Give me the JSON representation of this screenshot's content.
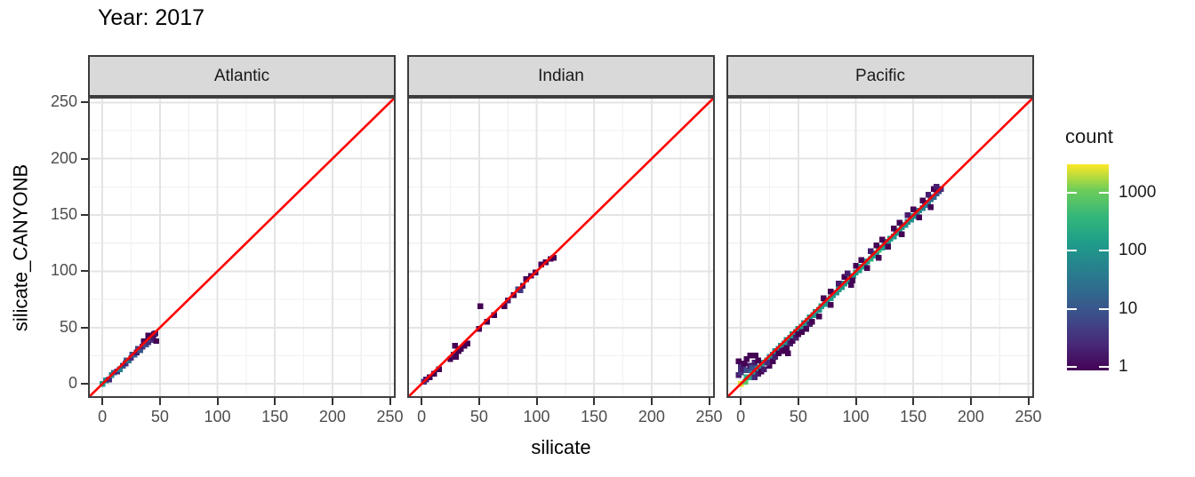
{
  "title": "Year: 2017",
  "axes": {
    "x_label": "silicate",
    "y_label": "silicate_CANYONB"
  },
  "legend": {
    "title": "count",
    "tick_values": [
      1000,
      100,
      10,
      1
    ],
    "scale": "log10",
    "palette": "viridis"
  },
  "colors": {
    "reference_line": "#FF0000",
    "strip_bg": "#D9D9D9",
    "strip_border": "#3b3b3b",
    "panel_border": "#404040",
    "grid_major": "#E4E4E4",
    "grid_minor": "#F1F1F1",
    "tick_label": "#4D4D4D",
    "text": "#1a1a1a",
    "viridis_low": "#440154",
    "viridis_high": "#FDE725"
  },
  "chart_data": {
    "type": "heatmap",
    "subtype": "bin2d",
    "title": "Year: 2017",
    "xlabel": "silicate",
    "ylabel": "silicate_CANYONB",
    "x_ticks": [
      0,
      50,
      100,
      150,
      200,
      250
    ],
    "y_ticks": [
      0,
      50,
      100,
      150,
      200,
      250
    ],
    "xlim": [
      -12.5,
      255
    ],
    "ylim": [
      -12.5,
      255
    ],
    "bin_size": 5,
    "bin_format": "[x, y, count]",
    "grid": "major+minor",
    "legend_position": "right",
    "reference_line": {
      "slope": 1,
      "intercept": 0,
      "color": "#FF0000"
    },
    "color_scale": {
      "palette": "viridis",
      "trans": "log10",
      "domain": [
        1,
        3000
      ],
      "legend_title": "count",
      "legend_ticks": [
        1,
        10,
        100,
        1000
      ]
    },
    "facets": [
      {
        "label": "Atlantic",
        "bins": [
          [
            0,
            0,
            120
          ],
          [
            3,
            3,
            80
          ],
          [
            6,
            4,
            3
          ],
          [
            8,
            8,
            60
          ],
          [
            10,
            10,
            25
          ],
          [
            13,
            11,
            3
          ],
          [
            15,
            13,
            50
          ],
          [
            18,
            16,
            10
          ],
          [
            20,
            18,
            3
          ],
          [
            21,
            21,
            12
          ],
          [
            23,
            21,
            30
          ],
          [
            25,
            23,
            3
          ],
          [
            26,
            26,
            8
          ],
          [
            28,
            26,
            15
          ],
          [
            30,
            28,
            2
          ],
          [
            31,
            31,
            6
          ],
          [
            33,
            30,
            12
          ],
          [
            35,
            33,
            3
          ],
          [
            36,
            38,
            1
          ],
          [
            38,
            35,
            8
          ],
          [
            40,
            37,
            3
          ],
          [
            40,
            43,
            1
          ],
          [
            42,
            39,
            4
          ],
          [
            44,
            41,
            2
          ],
          [
            45,
            44,
            1
          ],
          [
            47,
            38,
            1
          ],
          [
            46,
            45,
            2
          ]
        ]
      },
      {
        "label": "Indian",
        "bins": [
          [
            2,
            2,
            4
          ],
          [
            4,
            4,
            2
          ],
          [
            7,
            6,
            1
          ],
          [
            11,
            9,
            1
          ],
          [
            15,
            13,
            1
          ],
          [
            25,
            22,
            1
          ],
          [
            28,
            26,
            2
          ],
          [
            30,
            24,
            1
          ],
          [
            32,
            29,
            1
          ],
          [
            29,
            34,
            1
          ],
          [
            34,
            31,
            1
          ],
          [
            37,
            34,
            1
          ],
          [
            40,
            36,
            1
          ],
          [
            50,
            49,
            1
          ],
          [
            51,
            69,
            1
          ],
          [
            57,
            55,
            1
          ],
          [
            63,
            61,
            1
          ],
          [
            72,
            69,
            1
          ],
          [
            75,
            74,
            2
          ],
          [
            80,
            79,
            1
          ],
          [
            84,
            84,
            6
          ],
          [
            86,
            83,
            4
          ],
          [
            88,
            87,
            2
          ],
          [
            91,
            93,
            1
          ],
          [
            95,
            96,
            1
          ],
          [
            99,
            99,
            1
          ],
          [
            104,
            106,
            1
          ],
          [
            108,
            108,
            1
          ],
          [
            112,
            111,
            1
          ],
          [
            115,
            112,
            1
          ]
        ]
      },
      {
        "label": "Pacific",
        "bins": [
          [
            0,
            0,
            2500
          ],
          [
            4,
            2,
            800
          ],
          [
            5,
            6,
            300
          ],
          [
            8,
            6,
            200
          ],
          [
            10,
            9,
            150
          ],
          [
            13,
            11,
            200
          ],
          [
            15,
            14,
            150
          ],
          [
            18,
            16,
            100
          ],
          [
            20,
            19,
            150
          ],
          [
            23,
            21,
            100
          ],
          [
            25,
            24,
            80
          ],
          [
            28,
            26,
            120
          ],
          [
            30,
            29,
            100
          ],
          [
            33,
            31,
            80
          ],
          [
            35,
            34,
            120
          ],
          [
            38,
            36,
            100
          ],
          [
            40,
            39,
            80
          ],
          [
            43,
            41,
            120
          ],
          [
            45,
            44,
            150
          ],
          [
            48,
            46,
            100
          ],
          [
            50,
            49,
            120
          ],
          [
            53,
            51,
            150
          ],
          [
            55,
            54,
            100
          ],
          [
            58,
            56,
            120
          ],
          [
            60,
            59,
            150
          ],
          [
            63,
            61,
            100
          ],
          [
            65,
            64,
            120
          ],
          [
            68,
            66,
            100
          ],
          [
            70,
            69,
            150
          ],
          [
            73,
            71,
            120
          ],
          [
            75,
            74,
            100
          ],
          [
            78,
            76,
            150
          ],
          [
            80,
            79,
            120
          ],
          [
            83,
            81,
            100
          ],
          [
            85,
            84,
            150
          ],
          [
            88,
            86,
            120
          ],
          [
            90,
            89,
            100
          ],
          [
            93,
            91,
            150
          ],
          [
            95,
            94,
            200
          ],
          [
            98,
            96,
            150
          ],
          [
            100,
            99,
            120
          ],
          [
            103,
            101,
            150
          ],
          [
            105,
            104,
            200
          ],
          [
            108,
            106,
            150
          ],
          [
            110,
            109,
            120
          ],
          [
            113,
            111,
            300
          ],
          [
            115,
            114,
            150
          ],
          [
            118,
            116,
            120
          ],
          [
            120,
            119,
            500
          ],
          [
            123,
            121,
            150
          ],
          [
            125,
            124,
            120
          ],
          [
            128,
            126,
            100
          ],
          [
            130,
            129,
            150
          ],
          [
            133,
            131,
            120
          ],
          [
            135,
            134,
            100
          ],
          [
            138,
            136,
            150
          ],
          [
            140,
            139,
            120
          ],
          [
            143,
            141,
            100
          ],
          [
            145,
            144,
            80
          ],
          [
            148,
            146,
            100
          ],
          [
            150,
            149,
            80
          ],
          [
            153,
            151,
            60
          ],
          [
            155,
            154,
            80
          ],
          [
            158,
            156,
            60
          ],
          [
            160,
            159,
            50
          ],
          [
            163,
            161,
            40
          ],
          [
            165,
            164,
            30
          ],
          [
            168,
            166,
            20
          ],
          [
            170,
            169,
            12
          ],
          [
            172,
            171,
            8
          ],
          [
            174,
            173,
            3
          ],
          [
            -2,
            8,
            2
          ],
          [
            0,
            10,
            4
          ],
          [
            0,
            15,
            3
          ],
          [
            2,
            13,
            2
          ],
          [
            -2,
            20,
            1
          ],
          [
            3,
            18,
            1
          ],
          [
            5,
            12,
            8
          ],
          [
            5,
            22,
            1
          ],
          [
            8,
            16,
            2
          ],
          [
            8,
            25,
            1
          ],
          [
            10,
            14,
            10
          ],
          [
            12,
            19,
            2
          ],
          [
            15,
            21,
            1
          ],
          [
            13,
            25,
            1
          ],
          [
            12,
            6,
            3
          ],
          [
            15,
            9,
            2
          ],
          [
            18,
            11,
            1
          ],
          [
            20,
            13,
            2
          ],
          [
            25,
            16,
            1
          ],
          [
            23,
            19,
            3
          ],
          [
            28,
            20,
            1
          ],
          [
            30,
            24,
            2
          ],
          [
            33,
            27,
            1
          ],
          [
            36,
            29,
            1
          ],
          [
            38,
            30,
            1
          ],
          [
            40,
            32,
            1
          ],
          [
            41,
            27,
            1
          ],
          [
            43,
            36,
            2
          ],
          [
            45,
            38,
            1
          ],
          [
            48,
            41,
            2
          ],
          [
            50,
            44,
            1
          ],
          [
            53,
            46,
            1
          ],
          [
            57,
            49,
            1
          ],
          [
            60,
            53,
            2
          ],
          [
            62,
            55,
            1
          ],
          [
            68,
            60,
            1
          ],
          [
            72,
            76,
            1
          ],
          [
            78,
            70,
            1
          ],
          [
            78,
            82,
            1
          ],
          [
            85,
            89,
            2
          ],
          [
            90,
            95,
            1
          ],
          [
            93,
            98,
            2
          ],
          [
            96,
            88,
            1
          ],
          [
            97,
            92,
            1
          ],
          [
            100,
            105,
            1
          ],
          [
            105,
            110,
            1
          ],
          [
            110,
            103,
            1
          ],
          [
            113,
            118,
            2
          ],
          [
            118,
            123,
            1
          ],
          [
            120,
            112,
            1
          ],
          [
            123,
            128,
            1
          ],
          [
            128,
            122,
            1
          ],
          [
            133,
            138,
            1
          ],
          [
            138,
            143,
            1
          ],
          [
            140,
            133,
            1
          ],
          [
            145,
            150,
            2
          ],
          [
            150,
            155,
            1
          ],
          [
            155,
            148,
            1
          ],
          [
            158,
            163,
            1
          ],
          [
            163,
            168,
            2
          ],
          [
            165,
            157,
            1
          ],
          [
            168,
            173,
            1
          ],
          [
            170,
            175,
            2
          ]
        ]
      }
    ]
  }
}
